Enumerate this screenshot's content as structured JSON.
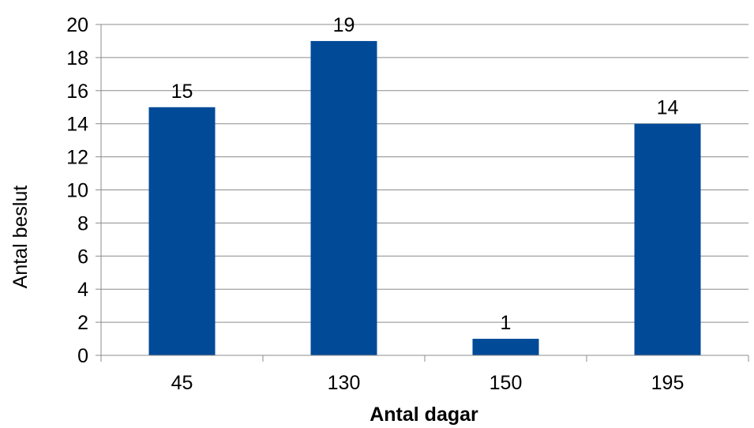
{
  "chart_data": {
    "type": "bar",
    "categories": [
      "45",
      "130",
      "150",
      "195"
    ],
    "values": [
      15,
      19,
      1,
      14
    ],
    "data_labels": [
      "15",
      "19",
      "1",
      "14"
    ],
    "xlabel": "Antal dagar",
    "ylabel": "Antal beslut",
    "ylim": [
      0,
      20
    ],
    "y_ticks": [
      "0",
      "2",
      "4",
      "6",
      "8",
      "10",
      "12",
      "14",
      "16",
      "18",
      "20"
    ],
    "grid": true,
    "legend": "none",
    "bar_color": "#004A98",
    "grid_color": "#8C8C8C"
  }
}
